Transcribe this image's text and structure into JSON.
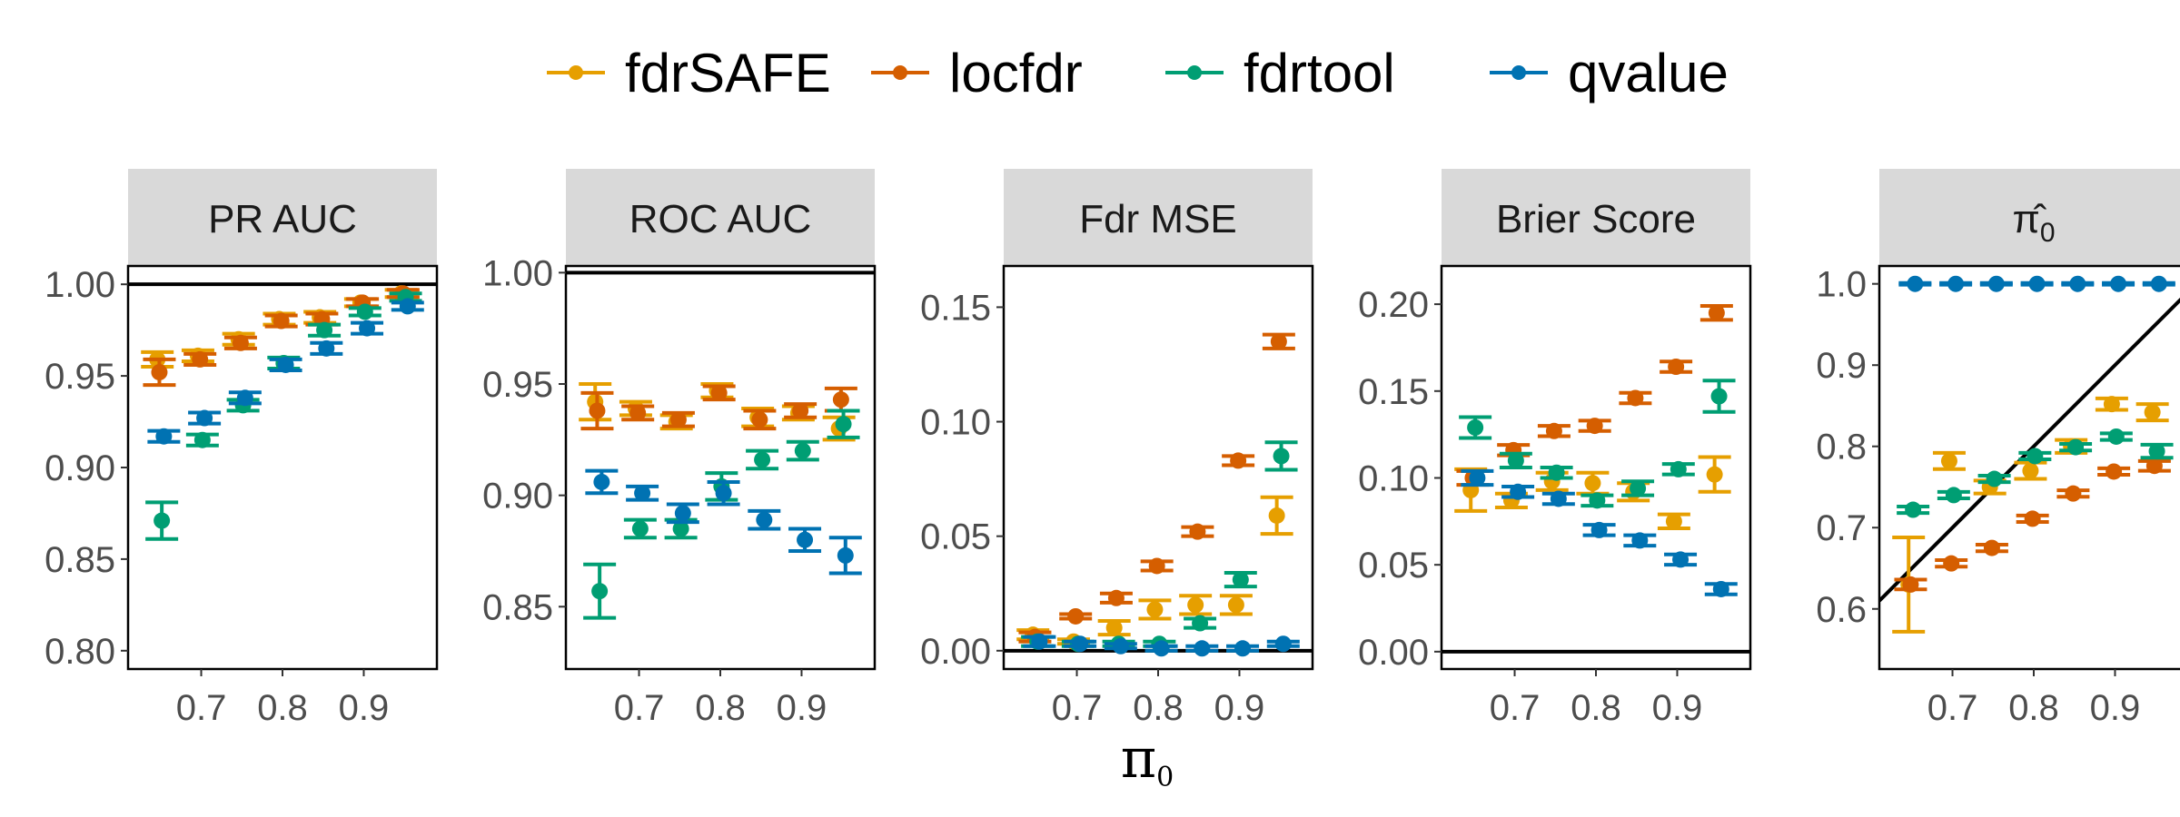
{
  "chart_data": {
    "type": "scatter",
    "xlabel": "π0",
    "x": [
      0.65,
      0.7,
      0.75,
      0.8,
      0.85,
      0.9,
      0.95
    ],
    "x_ticks": [
      "0.7",
      "0.8",
      "0.9"
    ],
    "legend": {
      "position": "top",
      "entries": [
        "fdrSAFE",
        "locfdr",
        "fdrtool",
        "qvalue"
      ]
    },
    "colors": {
      "fdrSAFE": "#E69F00",
      "locfdr": "#D55E00",
      "fdrtool": "#009E73",
      "qvalue": "#0072B2"
    },
    "grid": false,
    "panels": [
      {
        "title": "PR AUC",
        "ylim": [
          0.79,
          1.01
        ],
        "yticks": [
          "0.80",
          "0.85",
          "0.90",
          "0.95",
          "1.00"
        ],
        "hline": 1.0,
        "series": [
          {
            "name": "fdrSAFE",
            "y": [
              0.959,
              0.961,
              0.97,
              0.981,
              0.982,
              0.99,
              0.995
            ],
            "err": [
              0.004,
              0.003,
              0.003,
              0.003,
              0.003,
              0.002,
              0.002
            ]
          },
          {
            "name": "locfdr",
            "y": [
              0.952,
              0.959,
              0.968,
              0.98,
              0.981,
              0.99,
              0.995
            ],
            "err": [
              0.007,
              0.003,
              0.003,
              0.003,
              0.003,
              0.002,
              0.002
            ]
          },
          {
            "name": "fdrtool",
            "y": [
              0.871,
              0.915,
              0.934,
              0.957,
              0.975,
              0.985,
              0.993
            ],
            "err": [
              0.01,
              0.003,
              0.003,
              0.003,
              0.003,
              0.002,
              0.002
            ]
          },
          {
            "name": "qvalue",
            "y": [
              0.917,
              0.927,
              0.938,
              0.956,
              0.965,
              0.976,
              0.988
            ],
            "err": [
              0.003,
              0.003,
              0.003,
              0.003,
              0.003,
              0.003,
              0.002
            ]
          }
        ]
      },
      {
        "title": "ROC AUC",
        "ylim": [
          0.822,
          1.003
        ],
        "yticks": [
          "0.85",
          "0.90",
          "0.95",
          "1.00"
        ],
        "hline": 1.0,
        "series": [
          {
            "name": "fdrSAFE",
            "y": [
              0.942,
              0.939,
              0.933,
              0.947,
              0.935,
              0.937,
              0.93
            ],
            "err": [
              0.008,
              0.003,
              0.003,
              0.003,
              0.004,
              0.003,
              0.005
            ]
          },
          {
            "name": "locfdr",
            "y": [
              0.938,
              0.937,
              0.934,
              0.946,
              0.934,
              0.938,
              0.943
            ],
            "err": [
              0.008,
              0.003,
              0.003,
              0.003,
              0.004,
              0.003,
              0.005
            ]
          },
          {
            "name": "fdrtool",
            "y": [
              0.857,
              0.885,
              0.885,
              0.904,
              0.916,
              0.92,
              0.932
            ],
            "err": [
              0.012,
              0.004,
              0.004,
              0.006,
              0.004,
              0.004,
              0.006
            ]
          },
          {
            "name": "qvalue",
            "y": [
              0.906,
              0.901,
              0.892,
              0.901,
              0.889,
              0.88,
              0.873
            ],
            "err": [
              0.005,
              0.003,
              0.004,
              0.005,
              0.004,
              0.005,
              0.008
            ]
          }
        ]
      },
      {
        "title": "Fdr MSE",
        "ylim": [
          -0.008,
          0.168
        ],
        "yticks": [
          "0.00",
          "0.05",
          "0.10",
          "0.15"
        ],
        "hline": 0.0,
        "series": [
          {
            "name": "fdrSAFE",
            "y": [
              0.007,
              0.004,
              0.01,
              0.018,
              0.02,
              0.02,
              0.059
            ],
            "err": [
              0.002,
              0.001,
              0.003,
              0.004,
              0.004,
              0.004,
              0.008
            ]
          },
          {
            "name": "locfdr",
            "y": [
              0.006,
              0.015,
              0.023,
              0.037,
              0.052,
              0.083,
              0.135
            ],
            "err": [
              0.002,
              0.001,
              0.002,
              0.002,
              0.002,
              0.002,
              0.003
            ]
          },
          {
            "name": "fdrtool",
            "y": [
              0.004,
              0.003,
              0.003,
              0.003,
              0.012,
              0.031,
              0.085
            ],
            "err": [
              0.002,
              0.001,
              0.001,
              0.001,
              0.002,
              0.003,
              0.006
            ]
          },
          {
            "name": "qvalue",
            "y": [
              0.004,
              0.003,
              0.002,
              0.001,
              0.001,
              0.001,
              0.003
            ],
            "err": [
              0.002,
              0.001,
              0.001,
              0.001,
              0.001,
              0.001,
              0.001
            ]
          }
        ]
      },
      {
        "title": "Brier Score",
        "ylim": [
          -0.01,
          0.222
        ],
        "yticks": [
          "0.00",
          "0.05",
          "0.10",
          "0.15",
          "0.20"
        ],
        "hline": 0.0,
        "series": [
          {
            "name": "fdrSAFE",
            "y": [
              0.093,
              0.087,
              0.098,
              0.097,
              0.092,
              0.075,
              0.102
            ],
            "err": [
              0.012,
              0.004,
              0.005,
              0.006,
              0.005,
              0.004,
              0.01
            ]
          },
          {
            "name": "locfdr",
            "y": [
              0.1,
              0.116,
              0.127,
              0.13,
              0.146,
              0.164,
              0.195
            ],
            "err": [
              0.004,
              0.003,
              0.003,
              0.003,
              0.003,
              0.003,
              0.004
            ]
          },
          {
            "name": "fdrtool",
            "y": [
              0.129,
              0.11,
              0.103,
              0.087,
              0.094,
              0.105,
              0.147
            ],
            "err": [
              0.006,
              0.004,
              0.003,
              0.003,
              0.004,
              0.003,
              0.009
            ]
          },
          {
            "name": "qvalue",
            "y": [
              0.1,
              0.092,
              0.088,
              0.07,
              0.064,
              0.053,
              0.036
            ],
            "err": [
              0.004,
              0.003,
              0.003,
              0.003,
              0.003,
              0.003,
              0.003
            ]
          }
        ]
      },
      {
        "title": "π̂0",
        "ylim": [
          0.526,
          1.022
        ],
        "yticks": [
          "0.6",
          "0.7",
          "0.8",
          "0.9",
          "1.0"
        ],
        "diagonal": true,
        "series": [
          {
            "name": "fdrSAFE",
            "y": [
              0.63,
              0.782,
              0.75,
              0.77,
              0.8,
              0.852,
              0.842
            ],
            "err": [
              0.058,
              0.01,
              0.008,
              0.01,
              0.008,
              0.007,
              0.01
            ]
          },
          {
            "name": "locfdr",
            "y": [
              0.63,
              0.656,
              0.675,
              0.711,
              0.742,
              0.769,
              0.776
            ],
            "err": [
              0.006,
              0.004,
              0.004,
              0.004,
              0.004,
              0.004,
              0.006
            ]
          },
          {
            "name": "fdrtool",
            "y": [
              0.722,
              0.74,
              0.76,
              0.788,
              0.799,
              0.812,
              0.794
            ],
            "err": [
              0.004,
              0.004,
              0.004,
              0.004,
              0.004,
              0.004,
              0.008
            ]
          },
          {
            "name": "qvalue",
            "y": [
              1.0,
              1.0,
              1.0,
              1.0,
              1.0,
              1.0,
              1.0
            ],
            "err": [
              0.001,
              0.001,
              0.001,
              0.001,
              0.001,
              0.001,
              0.001
            ]
          }
        ]
      }
    ]
  }
}
